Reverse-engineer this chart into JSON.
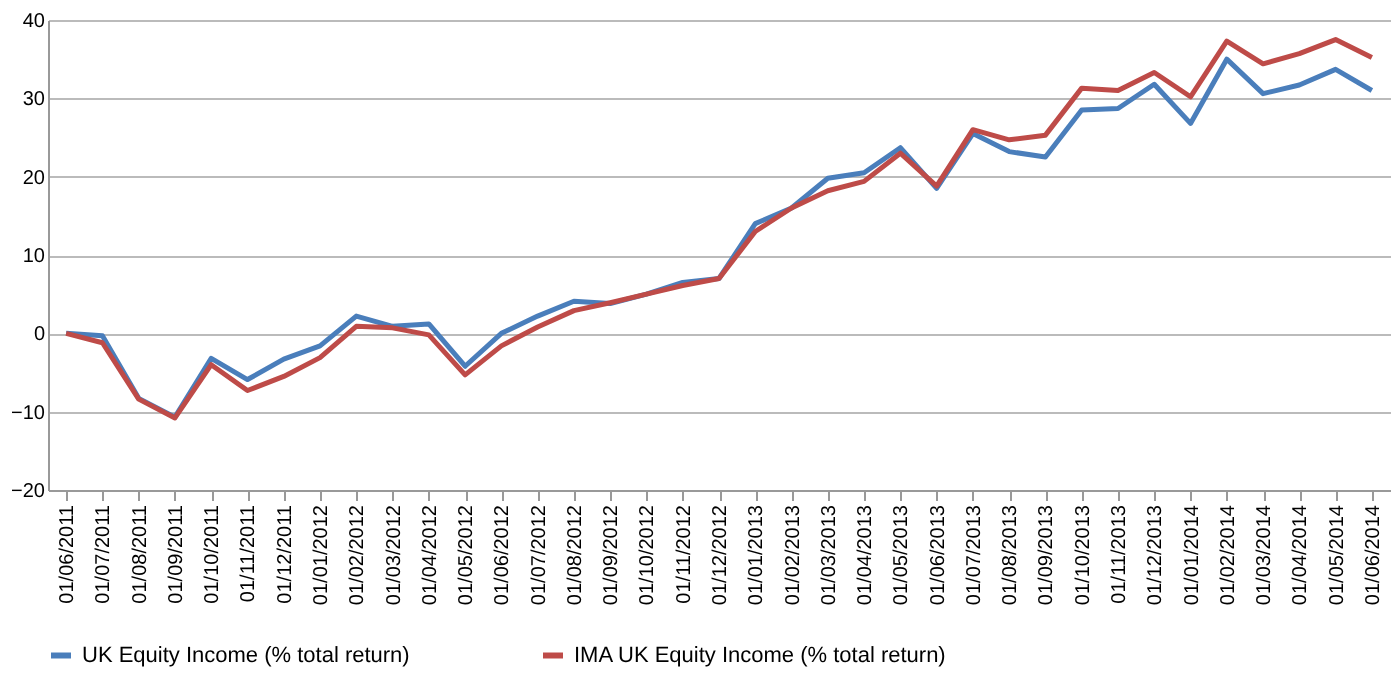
{
  "chart_data": {
    "type": "line",
    "categories": [
      "01/06/2011",
      "01/07/2011",
      "01/08/2011",
      "01/09/2011",
      "01/10/2011",
      "01/11/2011",
      "01/12/2011",
      "01/01/2012",
      "01/02/2012",
      "01/03/2012",
      "01/04/2012",
      "01/05/2012",
      "01/06/2012",
      "01/07/2012",
      "01/08/2012",
      "01/09/2012",
      "01/10/2012",
      "01/11/2012",
      "01/12/2012",
      "01/01/2013",
      "01/02/2013",
      "01/03/2013",
      "01/04/2013",
      "01/05/2013",
      "01/06/2013",
      "01/07/2013",
      "01/08/2013",
      "01/09/2013",
      "01/10/2013",
      "01/11/2013",
      "01/12/2013",
      "01/01/2014",
      "01/02/2014",
      "01/03/2014",
      "01/04/2014",
      "01/05/2014",
      "01/06/2014"
    ],
    "series": [
      {
        "name": "UK Equity Income (% total return)",
        "color": "#4a7ebb",
        "values": [
          0,
          -0.3,
          -8.3,
          -10.7,
          -3.2,
          -5.9,
          -3.3,
          -1.6,
          2.2,
          0.9,
          1.2,
          -4.2,
          0,
          2.2,
          4.1,
          3.8,
          5,
          6.5,
          7,
          14,
          16,
          19.8,
          20.5,
          23.7,
          18.5,
          25.5,
          23.2,
          22.5,
          28.5,
          28.7,
          31.8,
          26.8,
          35,
          30.6,
          31.7,
          33.7,
          31
        ]
      },
      {
        "name": "IMA UK Equity Income (% total return)",
        "color": "#be4b48",
        "values": [
          0,
          -1.2,
          -8.4,
          -10.8,
          -4,
          -7.3,
          -5.5,
          -3.1,
          0.9,
          0.7,
          -0.2,
          -5.3,
          -1.6,
          0.8,
          2.9,
          3.9,
          5,
          6.1,
          7,
          13,
          16,
          18.2,
          19.4,
          23,
          18.8,
          26,
          24.7,
          25.3,
          31.3,
          31,
          33.3,
          30.2,
          37.3,
          34.4,
          35.7,
          37.5,
          35.2
        ]
      }
    ],
    "ylim": [
      -20,
      40
    ],
    "yticks": [
      -20,
      -10,
      0,
      10,
      20,
      30,
      40
    ],
    "grid": "y",
    "legend": "bottom",
    "marker": "none",
    "line_style": "solid"
  }
}
